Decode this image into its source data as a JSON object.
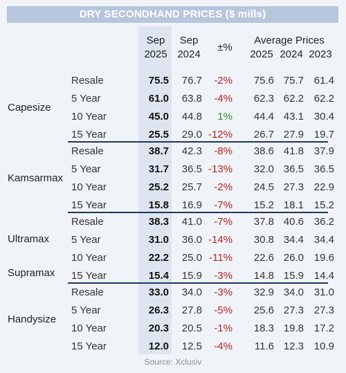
{
  "title": "DRY SECONDHAND PRICES ($ mills)",
  "headers": {
    "sep2025_line1": "Sep",
    "sep2025_line2": "2025",
    "sep2024_line1": "Sep",
    "sep2024_line2": "2024",
    "change": "±%",
    "avg_title": "Average Prices",
    "avg2025": "2025",
    "avg2024": "2024",
    "avg2023": "2023"
  },
  "groups": [
    {
      "label": "Capesize",
      "rows": [
        {
          "term": "Resale",
          "sep2025": "75.5",
          "sep2024": "76.7",
          "change": "-2%",
          "avg2025": "75.6",
          "avg2024": "75.7",
          "avg2023": "61.4"
        },
        {
          "term": "5 Year",
          "sep2025": "61.0",
          "sep2024": "63.8",
          "change": "-4%",
          "avg2025": "62.3",
          "avg2024": "62.2",
          "avg2023": "62.2"
        },
        {
          "term": "10 Year",
          "sep2025": "45.0",
          "sep2024": "44.8",
          "change": "1%",
          "avg2025": "44.4",
          "avg2024": "43.1",
          "avg2023": "30.4"
        },
        {
          "term": "15 Year",
          "sep2025": "25.5",
          "sep2024": "29.0",
          "change": "-12%",
          "avg2025": "26.7",
          "avg2024": "27.9",
          "avg2023": "19.7"
        }
      ]
    },
    {
      "label": "Kamsarmax",
      "rows": [
        {
          "term": "Resale",
          "sep2025": "38.7",
          "sep2024": "42.3",
          "change": "-8%",
          "avg2025": "38.6",
          "avg2024": "41.8",
          "avg2023": "37.9"
        },
        {
          "term": "5 Year",
          "sep2025": "31.7",
          "sep2024": "36.5",
          "change": "-13%",
          "avg2025": "32.0",
          "avg2024": "36.5",
          "avg2023": "36.5"
        },
        {
          "term": "10 Year",
          "sep2025": "25.2",
          "sep2024": "25.7",
          "change": "-2%",
          "avg2025": "24.5",
          "avg2024": "27.3",
          "avg2023": "22.9"
        },
        {
          "term": "15 Year",
          "sep2025": "15.8",
          "sep2024": "16.9",
          "change": "-7%",
          "avg2025": "15.2",
          "avg2024": "18.1",
          "avg2023": "15.2"
        }
      ]
    },
    {
      "label": "Ultramax",
      "label2": "Supramax",
      "rows": [
        {
          "term": "Resale",
          "sep2025": "38.3",
          "sep2024": "41.0",
          "change": "-7%",
          "avg2025": "37.8",
          "avg2024": "40.6",
          "avg2023": "36.2"
        },
        {
          "term": "5 Year",
          "sep2025": "31.0",
          "sep2024": "36.0",
          "change": "-14%",
          "avg2025": "30.8",
          "avg2024": "34.4",
          "avg2023": "34.4"
        },
        {
          "term": "10 Year",
          "sep2025": "22.2",
          "sep2024": "25.0",
          "change": "-11%",
          "avg2025": "22.6",
          "avg2024": "26.0",
          "avg2023": "19.6"
        },
        {
          "term": "15 Year",
          "sep2025": "15.4",
          "sep2024": "15.9",
          "change": "-3%",
          "avg2025": "14.8",
          "avg2024": "15.9",
          "avg2023": "14.4"
        }
      ]
    },
    {
      "label": "Handysize",
      "rows": [
        {
          "term": "Resale",
          "sep2025": "33.0",
          "sep2024": "34.0",
          "change": "-3%",
          "avg2025": "32.9",
          "avg2024": "34.0",
          "avg2023": "31.0"
        },
        {
          "term": "5 Year",
          "sep2025": "26.3",
          "sep2024": "27.8",
          "change": "-5%",
          "avg2025": "25.6",
          "avg2024": "27.3",
          "avg2023": "27.3"
        },
        {
          "term": "10 Year",
          "sep2025": "20.3",
          "sep2024": "20.5",
          "change": "-1%",
          "avg2025": "18.3",
          "avg2024": "19.8",
          "avg2023": "17.2"
        },
        {
          "term": "15 Year",
          "sep2025": "12.0",
          "sep2024": "12.5",
          "change": "-4%",
          "avg2025": "11.6",
          "avg2024": "12.3",
          "avg2023": "10.9"
        }
      ]
    }
  ],
  "source": "Source: Xclusiv",
  "colors": {
    "negative": "#b22222",
    "positive": "#2e8b2e",
    "header_bar": "#b7c6dd",
    "divider": "#1f3560",
    "highlight_col": "#dee5f0"
  }
}
